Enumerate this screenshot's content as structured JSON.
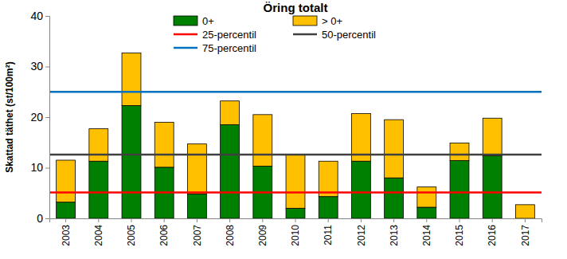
{
  "chart_data": {
    "type": "bar",
    "title": "Öring totalt",
    "y_label": "Skattad täthet (st/100m²)",
    "categories": [
      "2003",
      "2004",
      "2005",
      "2006",
      "2007",
      "2008",
      "2009",
      "2010",
      "2011",
      "2012",
      "2013",
      "2014",
      "2015",
      "2016",
      "2017"
    ],
    "series": [
      {
        "name": "0+",
        "color": "#008000",
        "values": [
          3.2,
          11.3,
          22.3,
          10.1,
          4.8,
          18.5,
          10.3,
          2.0,
          4.3,
          11.3,
          8.0,
          2.2,
          11.4,
          12.4,
          0
        ]
      },
      {
        "name": "> 0+",
        "color": "#FFC000",
        "values": [
          8.3,
          6.4,
          10.4,
          8.9,
          9.9,
          4.7,
          10.2,
          10.6,
          7.0,
          9.4,
          11.5,
          4.0,
          3.5,
          7.4,
          2.7
        ]
      },
      {
        "name": "25-percentil",
        "type": "line",
        "color": "#FF0000",
        "values": [
          5.1,
          5.1,
          5.1,
          5.1,
          5.1,
          5.1,
          5.1,
          5.1,
          5.1,
          5.1,
          5.1,
          5.1,
          5.1,
          5.1,
          5.1
        ]
      },
      {
        "name": "50-percentil",
        "type": "line",
        "color": "#404040",
        "values": [
          12.6,
          12.6,
          12.6,
          12.6,
          12.6,
          12.6,
          12.6,
          12.6,
          12.6,
          12.6,
          12.6,
          12.6,
          12.6,
          12.6,
          12.6
        ]
      },
      {
        "name": "75-percentil",
        "type": "line",
        "color": "#0070C0",
        "values": [
          25,
          25,
          25,
          25,
          25,
          25,
          25,
          25,
          25,
          25,
          25,
          25,
          25,
          25,
          25
        ]
      }
    ],
    "stacked": true,
    "ylim": [
      0,
      40
    ],
    "yticks": [
      0,
      10,
      20,
      30,
      40
    ],
    "grid": false,
    "legend": "top"
  }
}
